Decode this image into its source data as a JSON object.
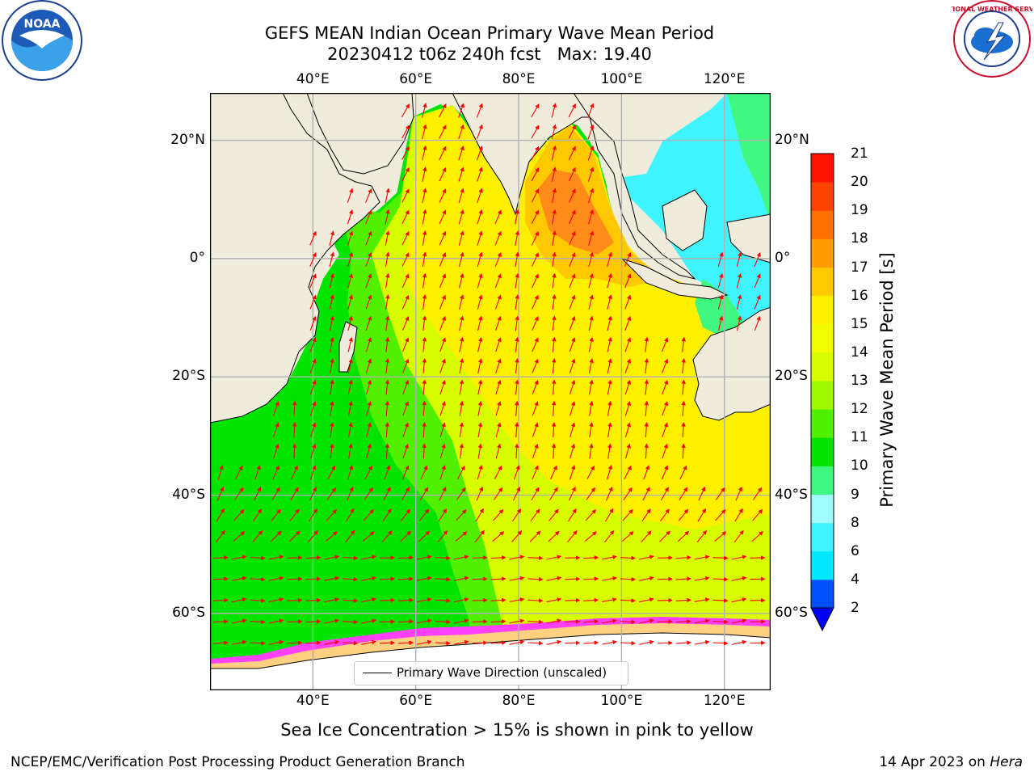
{
  "header": {
    "title_line1": "GEFS MEAN Indian Ocean Primary Wave Mean Period",
    "title_line2": "20230412 t06z 240h fcst   Max: 19.40"
  },
  "map": {
    "lon_range": [
      20,
      129
    ],
    "lat_range": [
      -73,
      28
    ],
    "lon_ticks": [
      40,
      60,
      80,
      100,
      120
    ],
    "lat_ticks": [
      20,
      0,
      -20,
      -40,
      -60
    ],
    "lon_tick_labels": [
      "40°E",
      "60°E",
      "80°E",
      "100°E",
      "120°E"
    ],
    "lat_tick_labels": [
      "20°N",
      "0°",
      "20°S",
      "40°S",
      "60°S"
    ],
    "land_color": "#efecdc",
    "arrow_color": "#ff0000",
    "gridlines": true
  },
  "legend": {
    "label": "Primary Wave Direction (unscaled)",
    "placement": "bottom-center"
  },
  "colorbar": {
    "label": "Primary Wave Mean Period [s]",
    "tick_labels": [
      "2",
      "4",
      "6",
      "8",
      "9",
      "10",
      "11",
      "12",
      "13",
      "14",
      "15",
      "16",
      "17",
      "18",
      "19",
      "20",
      "21"
    ],
    "colors": [
      "#0050ff",
      "#00e8ff",
      "#40f4ff",
      "#a0fcff",
      "#40f880",
      "#00e400",
      "#50f000",
      "#a0f800",
      "#d8fc00",
      "#f0fc00",
      "#fff000",
      "#ffc800",
      "#ff9c00",
      "#ff7000",
      "#ff4400",
      "#ff1400"
    ],
    "under_color": "#0000ff",
    "extend": "min"
  },
  "caption": "Sea Ice Concentration > 15% is shown in pink to yellow",
  "footer": {
    "left": "NCEP/EMC/Verification Post Processing Product Generation Branch",
    "date": "14 Apr 2023 on ",
    "host": "Hera"
  },
  "logos": {
    "left": "NOAA",
    "right": "NATIONAL WEATHER SERVICE"
  }
}
